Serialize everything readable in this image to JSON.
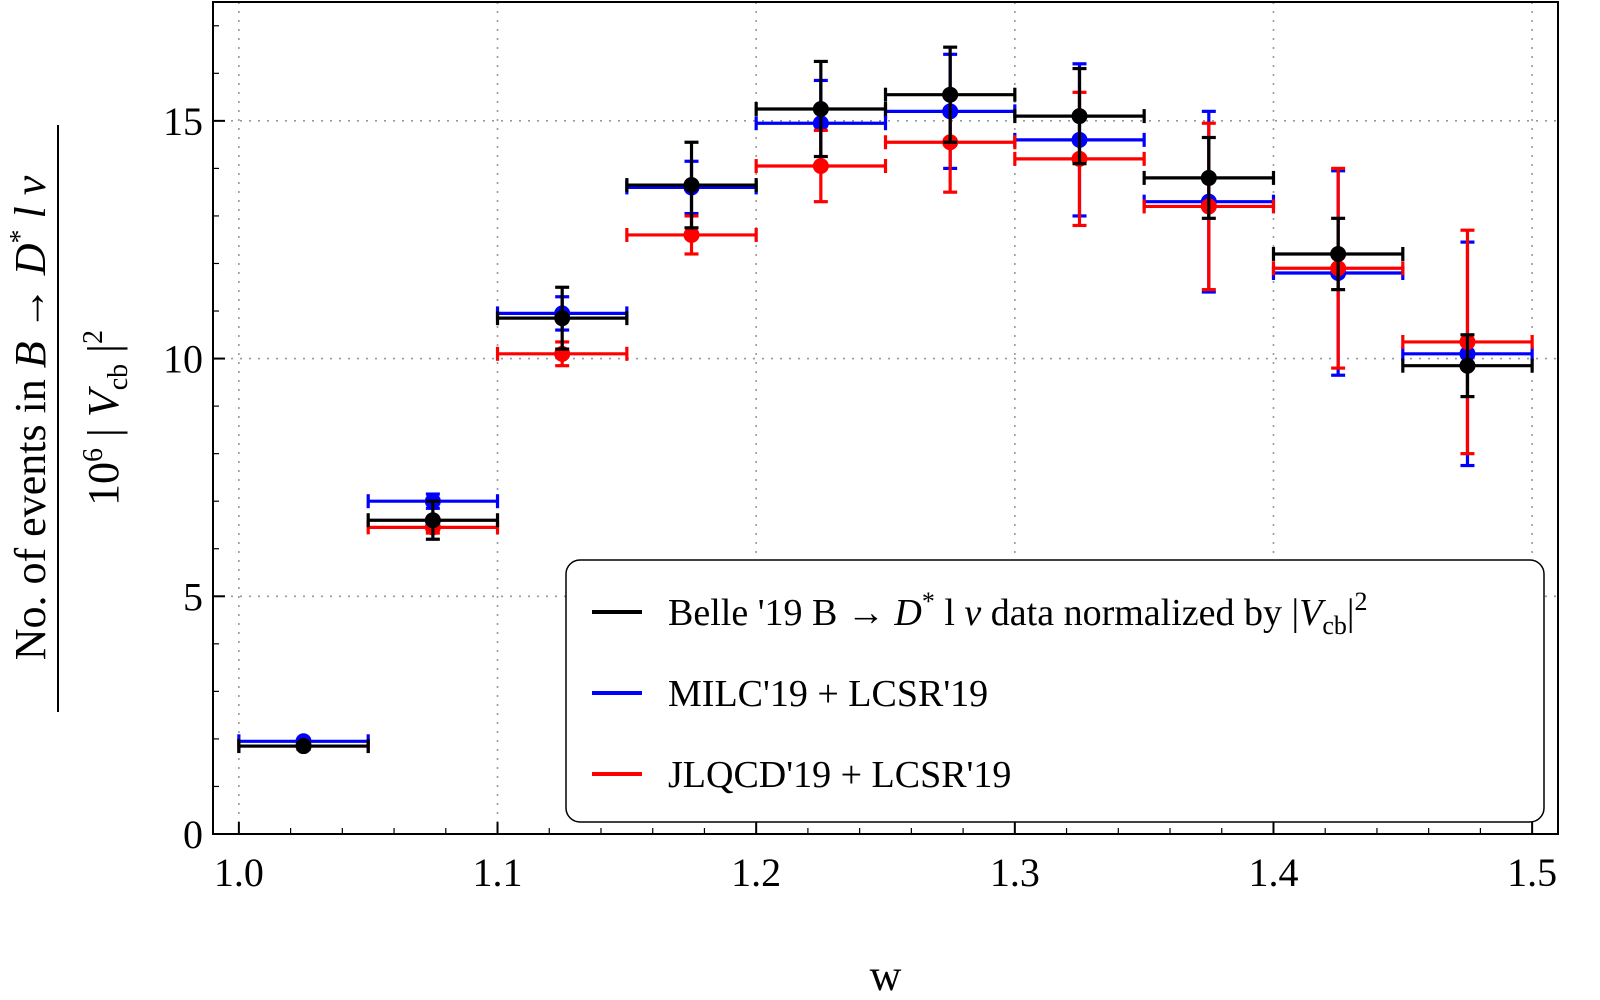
{
  "chart_data": {
    "type": "scatter",
    "xlabel": "w",
    "ylabel": {
      "numerator": {
        "prefix": "No. of events in ",
        "b": "B",
        "arrow": " → ",
        "dstar": "D",
        "star": "*",
        "rest": " l ν"
      },
      "denominator": {
        "factor": "10",
        "exp": "6",
        "bar": " | ",
        "v": "V",
        "sub": "cb",
        "close": " |",
        "sq": "2"
      }
    },
    "xlim": [
      0.99,
      1.51
    ],
    "ylim": [
      0,
      17.5
    ],
    "xticks": [
      1.0,
      1.1,
      1.2,
      1.3,
      1.4,
      1.5
    ],
    "xtick_labels": [
      "1.0",
      "1.1",
      "1.2",
      "1.3",
      "1.4",
      "1.5"
    ],
    "yticks": [
      0,
      5,
      10,
      15
    ],
    "ytick_labels": [
      "0",
      "5",
      "10",
      "15"
    ],
    "grid": true,
    "legend_position": "bottom-right",
    "series": [
      {
        "name": "MILC'19 + LCSR'19",
        "color": "#0000ff",
        "bins": [
          {
            "x": 1.025,
            "xerr": 0.025,
            "y": 1.95,
            "yerr": 0.05
          },
          {
            "x": 1.075,
            "xerr": 0.025,
            "y": 7.0,
            "yerr": 0.15
          },
          {
            "x": 1.125,
            "xerr": 0.025,
            "y": 10.95,
            "yerr": 0.35
          },
          {
            "x": 1.175,
            "xerr": 0.025,
            "y": 13.6,
            "yerr": 0.55
          },
          {
            "x": 1.225,
            "xerr": 0.025,
            "y": 14.95,
            "yerr": 0.9
          },
          {
            "x": 1.275,
            "xerr": 0.025,
            "y": 15.2,
            "yerr": 1.2
          },
          {
            "x": 1.325,
            "xerr": 0.025,
            "y": 14.6,
            "yerr": 1.6
          },
          {
            "x": 1.375,
            "xerr": 0.025,
            "y": 13.3,
            "yerr": 1.9
          },
          {
            "x": 1.425,
            "xerr": 0.025,
            "y": 11.8,
            "yerr": 2.15
          },
          {
            "x": 1.475,
            "xerr": 0.025,
            "y": 10.1,
            "yerr": 2.35
          }
        ]
      },
      {
        "name": "JLQCD'19 + LCSR'19",
        "color": "#ff0000",
        "bins": [
          {
            "x": 1.025,
            "xerr": 0.025,
            "y": 1.85,
            "yerr": 0.05
          },
          {
            "x": 1.075,
            "xerr": 0.025,
            "y": 6.45,
            "yerr": 0.12
          },
          {
            "x": 1.125,
            "xerr": 0.025,
            "y": 10.1,
            "yerr": 0.25
          },
          {
            "x": 1.175,
            "xerr": 0.025,
            "y": 12.6,
            "yerr": 0.4
          },
          {
            "x": 1.225,
            "xerr": 0.025,
            "y": 14.05,
            "yerr": 0.75
          },
          {
            "x": 1.275,
            "xerr": 0.025,
            "y": 14.55,
            "yerr": 1.05
          },
          {
            "x": 1.325,
            "xerr": 0.025,
            "y": 14.2,
            "yerr": 1.4
          },
          {
            "x": 1.375,
            "xerr": 0.025,
            "y": 13.2,
            "yerr": 1.75
          },
          {
            "x": 1.425,
            "xerr": 0.025,
            "y": 11.9,
            "yerr": 2.1
          },
          {
            "x": 1.475,
            "xerr": 0.025,
            "y": 10.35,
            "yerr": 2.35
          }
        ]
      },
      {
        "name": "Belle '19 B → D* l ν data normalized by |Vcb|²",
        "color": "#000000",
        "bins": [
          {
            "x": 1.025,
            "xerr": 0.025,
            "y": 1.85,
            "yerr": 0.07
          },
          {
            "x": 1.075,
            "xerr": 0.025,
            "y": 6.6,
            "yerr": 0.4
          },
          {
            "x": 1.125,
            "xerr": 0.025,
            "y": 10.85,
            "yerr": 0.65
          },
          {
            "x": 1.175,
            "xerr": 0.025,
            "y": 13.65,
            "yerr": 0.9
          },
          {
            "x": 1.225,
            "xerr": 0.025,
            "y": 15.25,
            "yerr": 1.0
          },
          {
            "x": 1.275,
            "xerr": 0.025,
            "y": 15.55,
            "yerr": 1.0
          },
          {
            "x": 1.325,
            "xerr": 0.025,
            "y": 15.1,
            "yerr": 1.0
          },
          {
            "x": 1.375,
            "xerr": 0.025,
            "y": 13.8,
            "yerr": 0.85
          },
          {
            "x": 1.425,
            "xerr": 0.025,
            "y": 12.2,
            "yerr": 0.75
          },
          {
            "x": 1.475,
            "xerr": 0.025,
            "y": 9.85,
            "yerr": 0.65
          }
        ]
      }
    ],
    "legend": [
      {
        "color": "#000000",
        "parts": [
          {
            "t": "Belle '19 B → "
          },
          {
            "t": "D",
            "i": true
          },
          {
            "t": "*",
            "sup": true
          },
          {
            "t": " l "
          },
          {
            "t": "ν",
            "i": true
          },
          {
            "t": " data normalized by |"
          },
          {
            "t": "V",
            "i": true
          },
          {
            "t": "cb",
            "sub": true
          },
          {
            "t": "|"
          },
          {
            "t": "2",
            "sup": true
          }
        ]
      },
      {
        "color": "#0000ff",
        "parts": [
          {
            "t": "MILC'19 + LCSR'19"
          }
        ]
      },
      {
        "color": "#ff0000",
        "parts": [
          {
            "t": "JLQCD'19 + LCSR'19"
          }
        ]
      }
    ]
  }
}
